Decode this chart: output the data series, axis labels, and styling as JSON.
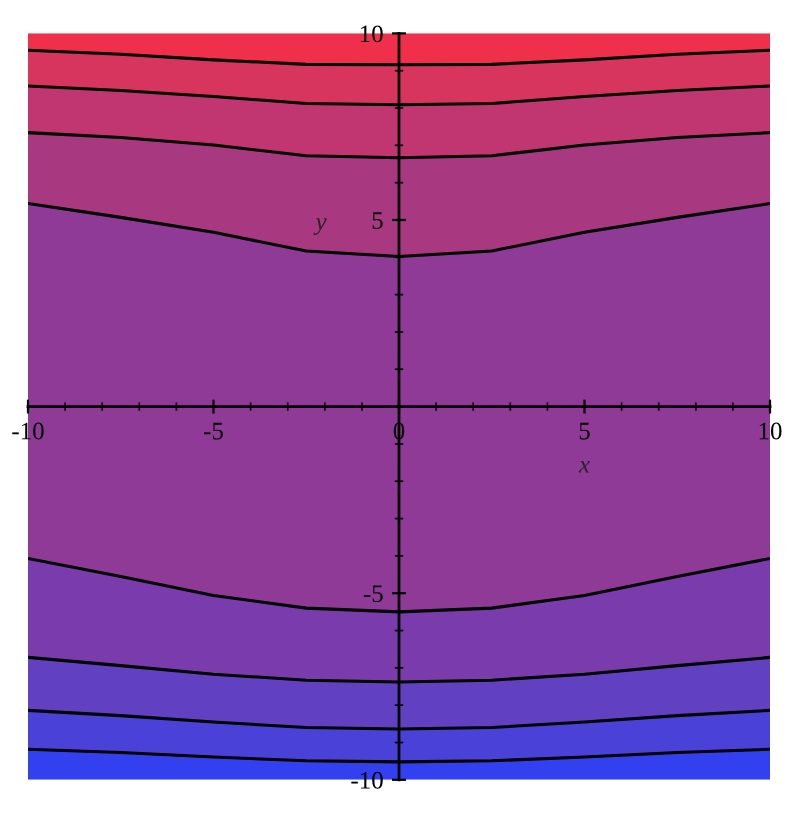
{
  "chart_data": {
    "type": "area",
    "xlabel": "x",
    "ylabel": "y",
    "xlim": [
      -10,
      10
    ],
    "ylim": [
      -10,
      10
    ],
    "xticks": [
      -10,
      -5,
      0,
      5,
      10
    ],
    "yticks": [
      -10,
      -5,
      5,
      10
    ],
    "grid": false,
    "legend": false,
    "series": [
      {
        "color": "#f0304a",
        "x": [
          -10,
          -7.5,
          -5,
          -2.5,
          0,
          2.5,
          5,
          7.5,
          10
        ],
        "values": [
          10,
          10,
          10,
          10,
          10,
          10,
          10,
          10,
          10
        ]
      },
      {
        "color": "#d8355e",
        "line_style": "solid",
        "x": [
          -10,
          -7.5,
          -5,
          -2.5,
          0,
          2.5,
          5,
          7.5,
          10
        ],
        "values": [
          9.55,
          9.44,
          9.29,
          9.17,
          9.16,
          9.17,
          9.29,
          9.44,
          9.55
        ]
      },
      {
        "color": "#c13670",
        "line_style": "solid",
        "x": [
          -10,
          -7.5,
          -5,
          -2.5,
          0,
          2.5,
          5,
          7.5,
          10
        ],
        "values": [
          8.59,
          8.47,
          8.31,
          8.12,
          8.09,
          8.12,
          8.31,
          8.47,
          8.59
        ]
      },
      {
        "color": "#a8387f",
        "line_style": "solid",
        "x": [
          -10,
          -7.5,
          -5,
          -2.5,
          0,
          2.5,
          5,
          7.5,
          10
        ],
        "values": [
          7.34,
          7.21,
          7.01,
          6.72,
          6.67,
          6.72,
          7.01,
          7.21,
          7.34
        ]
      },
      {
        "color": "#8f3a96",
        "line_style": "solid",
        "x": [
          -10,
          -7.5,
          -5,
          -2.5,
          0,
          2.5,
          5,
          7.5,
          10
        ],
        "values": [
          5.44,
          5.07,
          4.67,
          4.17,
          4.02,
          4.17,
          4.67,
          5.07,
          5.44
        ]
      },
      {
        "color": "#3240f0",
        "x": [
          -10,
          -7.5,
          -5,
          -2.5,
          0,
          2.5,
          5,
          7.5,
          10
        ],
        "values": [
          -10,
          -10,
          -10,
          -10,
          -10,
          -10,
          -10,
          -10,
          -10
        ]
      },
      {
        "color": "#4a42d8",
        "line_style": "solid",
        "x": [
          -10,
          -7.5,
          -5,
          -2.5,
          0,
          2.5,
          5,
          7.5,
          10
        ],
        "values": [
          -9.18,
          -9.27,
          -9.39,
          -9.49,
          -9.52,
          -9.49,
          -9.39,
          -9.27,
          -9.18
        ]
      },
      {
        "color": "#6240c2",
        "line_style": "solid",
        "x": [
          -10,
          -7.5,
          -5,
          -2.5,
          0,
          2.5,
          5,
          7.5,
          10
        ],
        "values": [
          -8.14,
          -8.28,
          -8.45,
          -8.6,
          -8.64,
          -8.6,
          -8.45,
          -8.28,
          -8.14
        ]
      },
      {
        "color": "#7a3cad",
        "line_style": "solid",
        "x": [
          -10,
          -7.5,
          -5,
          -2.5,
          0,
          2.5,
          5,
          7.5,
          10
        ],
        "values": [
          -6.72,
          -6.94,
          -7.17,
          -7.33,
          -7.38,
          -7.33,
          -7.17,
          -6.94,
          -6.72
        ]
      },
      {
        "color": "#8f3a96",
        "line_style": "solid",
        "x": [
          -10,
          -7.5,
          -5,
          -2.5,
          0,
          2.5,
          5,
          7.5,
          10
        ],
        "values": [
          -4.07,
          -4.55,
          -5.06,
          -5.4,
          -5.5,
          -5.4,
          -5.06,
          -4.55,
          -4.07
        ]
      }
    ]
  }
}
